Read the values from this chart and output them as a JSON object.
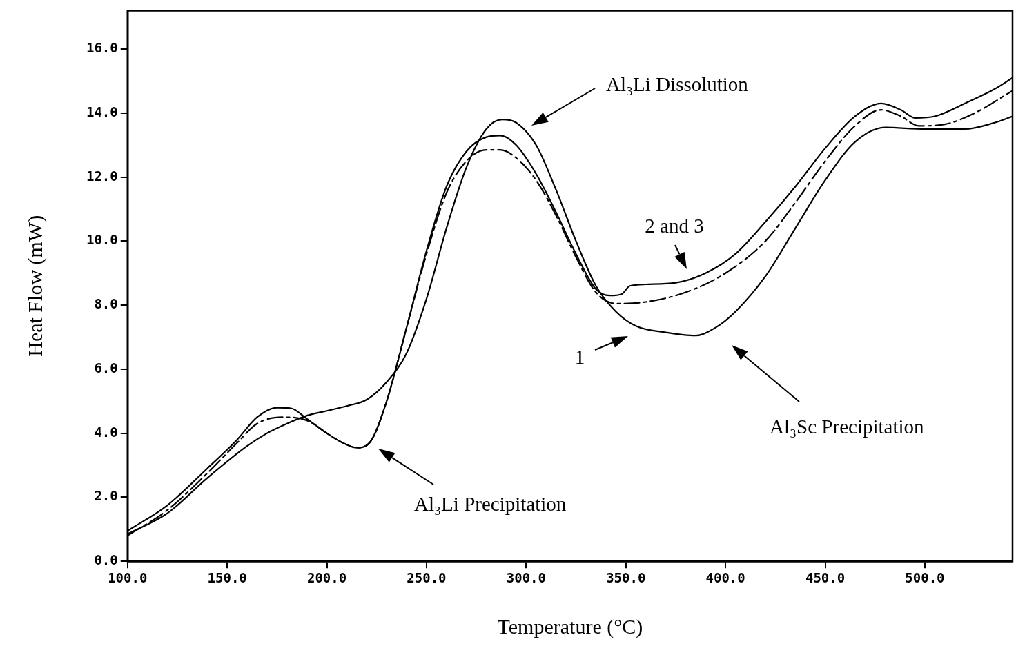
{
  "chart_data": {
    "type": "line",
    "xlabel": "Temperature (°C)",
    "ylabel": "Heat Flow (mW)",
    "xlim": [
      100,
      544
    ],
    "ylim": [
      0,
      17.2
    ],
    "xticks": [
      {
        "value": 100,
        "label": "100.0"
      },
      {
        "value": 150,
        "label": "150.0"
      },
      {
        "value": 200,
        "label": "200.0"
      },
      {
        "value": 250,
        "label": "250.0"
      },
      {
        "value": 300,
        "label": "300.0"
      },
      {
        "value": 350,
        "label": "350.0"
      },
      {
        "value": 400,
        "label": "400.0"
      },
      {
        "value": 450,
        "label": "450.0"
      },
      {
        "value": 500,
        "label": "500.0"
      }
    ],
    "yticks": [
      {
        "value": 0,
        "label": "0.0"
      },
      {
        "value": 2,
        "label": "2.0"
      },
      {
        "value": 4,
        "label": "4.0"
      },
      {
        "value": 6,
        "label": "6.0"
      },
      {
        "value": 8,
        "label": "8.0"
      },
      {
        "value": 10,
        "label": "10.0"
      },
      {
        "value": 12,
        "label": "12.0"
      },
      {
        "value": 14,
        "label": "14.0"
      },
      {
        "value": 16,
        "label": "16.0"
      }
    ],
    "grid": false,
    "legend": false,
    "marker": "none",
    "series": [
      {
        "color": "#000000",
        "line_style": "solid",
        "x": [
          100,
          120,
          140,
          160,
          170,
          180,
          190,
          200,
          210,
          220,
          230,
          240,
          250,
          260,
          270,
          280,
          288,
          295,
          305,
          315,
          325,
          335,
          345,
          355,
          370,
          385,
          395,
          405,
          420,
          435,
          450,
          465,
          480,
          500,
          520,
          535,
          544
        ],
        "values": [
          0.85,
          1.5,
          2.6,
          3.6,
          4.0,
          4.3,
          4.55,
          4.7,
          4.85,
          5.05,
          5.6,
          6.5,
          8.2,
          10.4,
          12.3,
          13.5,
          13.8,
          13.7,
          13.0,
          11.6,
          10.0,
          8.6,
          7.8,
          7.35,
          7.15,
          7.05,
          7.3,
          7.8,
          8.9,
          10.4,
          11.9,
          13.1,
          13.55,
          13.5,
          13.5,
          13.7,
          13.9
        ]
      },
      {
        "color": "#000000",
        "line_style": "solid",
        "x": [
          100,
          120,
          140,
          155,
          165,
          175,
          182,
          190,
          200,
          208,
          215,
          222,
          230,
          240,
          250,
          260,
          270,
          280,
          287,
          295,
          305,
          315,
          325,
          335,
          342,
          348,
          352,
          360,
          375,
          390,
          405,
          420,
          435,
          450,
          465,
          478,
          488,
          495,
          505,
          520,
          535,
          544
        ],
        "values": [
          0.95,
          1.75,
          2.9,
          3.8,
          4.5,
          4.8,
          4.78,
          4.45,
          4.0,
          3.7,
          3.55,
          3.75,
          5.0,
          7.3,
          9.7,
          11.7,
          12.8,
          13.25,
          13.3,
          13.0,
          12.1,
          10.9,
          9.6,
          8.5,
          8.3,
          8.35,
          8.6,
          8.65,
          8.7,
          9.0,
          9.6,
          10.6,
          11.7,
          12.9,
          13.9,
          14.3,
          14.1,
          13.85,
          13.9,
          14.3,
          14.75,
          15.1
        ]
      },
      {
        "color": "#000000",
        "line_style": "dashed",
        "x": [
          100,
          120,
          140,
          155,
          165,
          178,
          190,
          200,
          208,
          215,
          222,
          230,
          240,
          250,
          260,
          270,
          280,
          287,
          295,
          305,
          315,
          325,
          335,
          345,
          360,
          380,
          400,
          420,
          435,
          450,
          465,
          478,
          488,
          497,
          510,
          525,
          544
        ],
        "values": [
          0.8,
          1.6,
          2.75,
          3.7,
          4.3,
          4.5,
          4.4,
          4.0,
          3.7,
          3.55,
          3.75,
          5.0,
          7.3,
          9.6,
          11.5,
          12.5,
          12.85,
          12.85,
          12.6,
          11.9,
          10.8,
          9.5,
          8.4,
          8.05,
          8.1,
          8.4,
          9.0,
          10.0,
          11.2,
          12.5,
          13.6,
          14.1,
          13.9,
          13.6,
          13.65,
          14.0,
          14.7
        ]
      }
    ],
    "annotations": [
      "Al₃Li Dissolution",
      "Al₃Li Precipitation",
      "Al₃Sc Precipitation",
      "1",
      "2 and 3"
    ]
  }
}
